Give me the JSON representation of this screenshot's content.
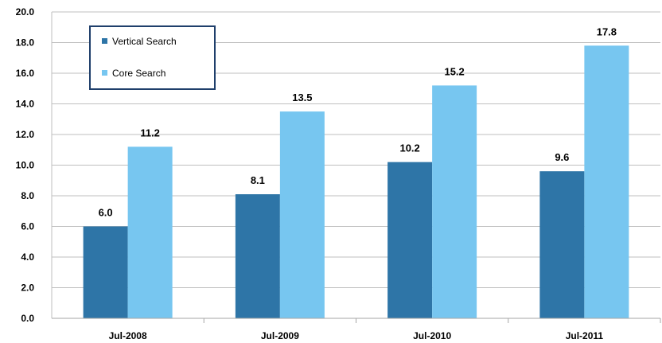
{
  "chart_data": {
    "type": "bar",
    "categories": [
      "Jul-2008",
      "Jul-2009",
      "Jul-2010",
      "Jul-2011"
    ],
    "series": [
      {
        "name": "Vertical Search",
        "values": [
          6.0,
          8.1,
          10.2,
          9.6
        ],
        "color": "#2E75A7"
      },
      {
        "name": "Core Search",
        "values": [
          11.2,
          13.5,
          15.2,
          17.8
        ],
        "color": "#77C6F0"
      }
    ],
    "ylim": [
      0,
      20
    ],
    "yticks": [
      "0.0",
      "2.0",
      "4.0",
      "6.0",
      "8.0",
      "10.0",
      "12.0",
      "14.0",
      "16.0",
      "18.0",
      "20.0"
    ],
    "data_labels": [
      [
        "6.0",
        "8.1",
        "10.2",
        "9.6"
      ],
      [
        "11.2",
        "13.5",
        "15.2",
        "17.8"
      ]
    ],
    "gridlines": true,
    "legend_position": "top-left",
    "gridline_color": "#BFBFBF",
    "legend_border_color": "#1F3F6B",
    "title": "",
    "xlabel": "",
    "ylabel": ""
  }
}
